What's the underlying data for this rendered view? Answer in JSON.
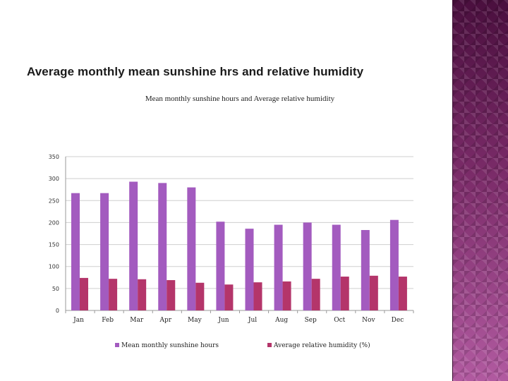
{
  "slide": {
    "title": "Average monthly mean sunshine hrs and relative humidity"
  },
  "colors": {
    "sunshine": "#a35bbf",
    "humidity": "#b4356a",
    "gridline": "#cfcfcf",
    "side_band": "#5c1a4e"
  },
  "chart_data": {
    "type": "bar",
    "title": "Mean monthly sunshine hours and Average relative humidity",
    "categories": [
      "Jan",
      "Feb",
      "Mar",
      "Apr",
      "May",
      "Jun",
      "Jul",
      "Aug",
      "Sep",
      "Oct",
      "Nov",
      "Dec"
    ],
    "series": [
      {
        "name": "Mean monthly sunshine hours",
        "values": [
          267,
          267,
          293,
          290,
          280,
          202,
          186,
          195,
          200,
          195,
          183,
          206
        ]
      },
      {
        "name": "Average relative humidity (%)",
        "values": [
          74,
          72,
          71,
          69,
          63,
          59,
          64,
          66,
          72,
          77,
          79,
          77
        ]
      }
    ],
    "ylim": [
      0,
      350
    ],
    "yticks": [
      "0",
      "50",
      "100",
      "150",
      "200",
      "250",
      "300",
      "350"
    ],
    "grid": true,
    "legend": "bottom",
    "xlabel": "",
    "ylabel": ""
  }
}
